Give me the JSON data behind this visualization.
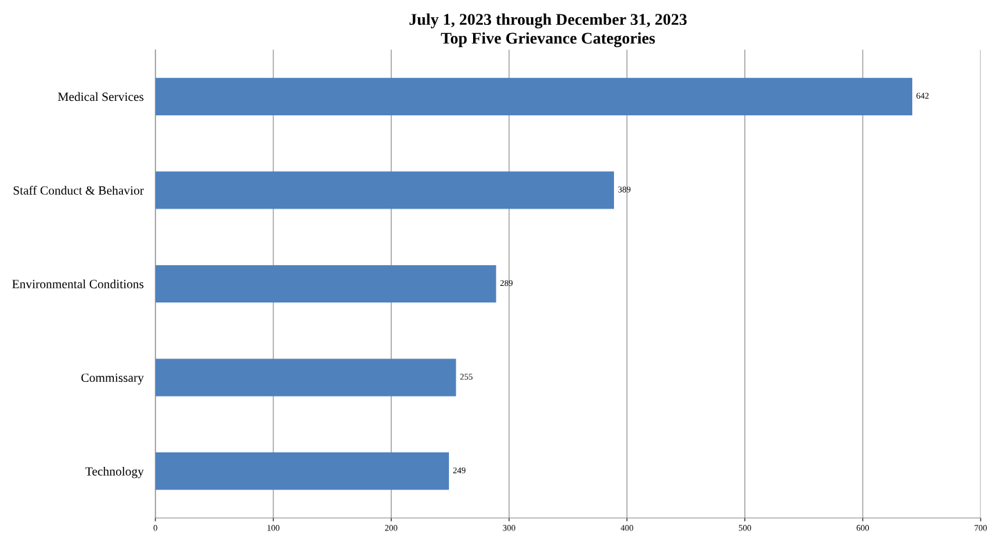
{
  "chart_data": {
    "type": "bar",
    "orientation": "horizontal",
    "title": "July 1, 2023 through December 31, 2023",
    "subtitle": "Top Five Grievance Categories",
    "categories": [
      "Medical Services",
      "Staff Conduct & Behavior",
      "Environmental Conditions",
      "Commissary",
      "Technology"
    ],
    "values": [
      642,
      389,
      289,
      255,
      249
    ],
    "color": "#4f81bd",
    "data_labels": true,
    "xlim": [
      0,
      700
    ],
    "xticks": [
      0,
      100,
      200,
      300,
      400,
      500,
      600,
      700
    ],
    "grid": "x",
    "legend": false
  }
}
